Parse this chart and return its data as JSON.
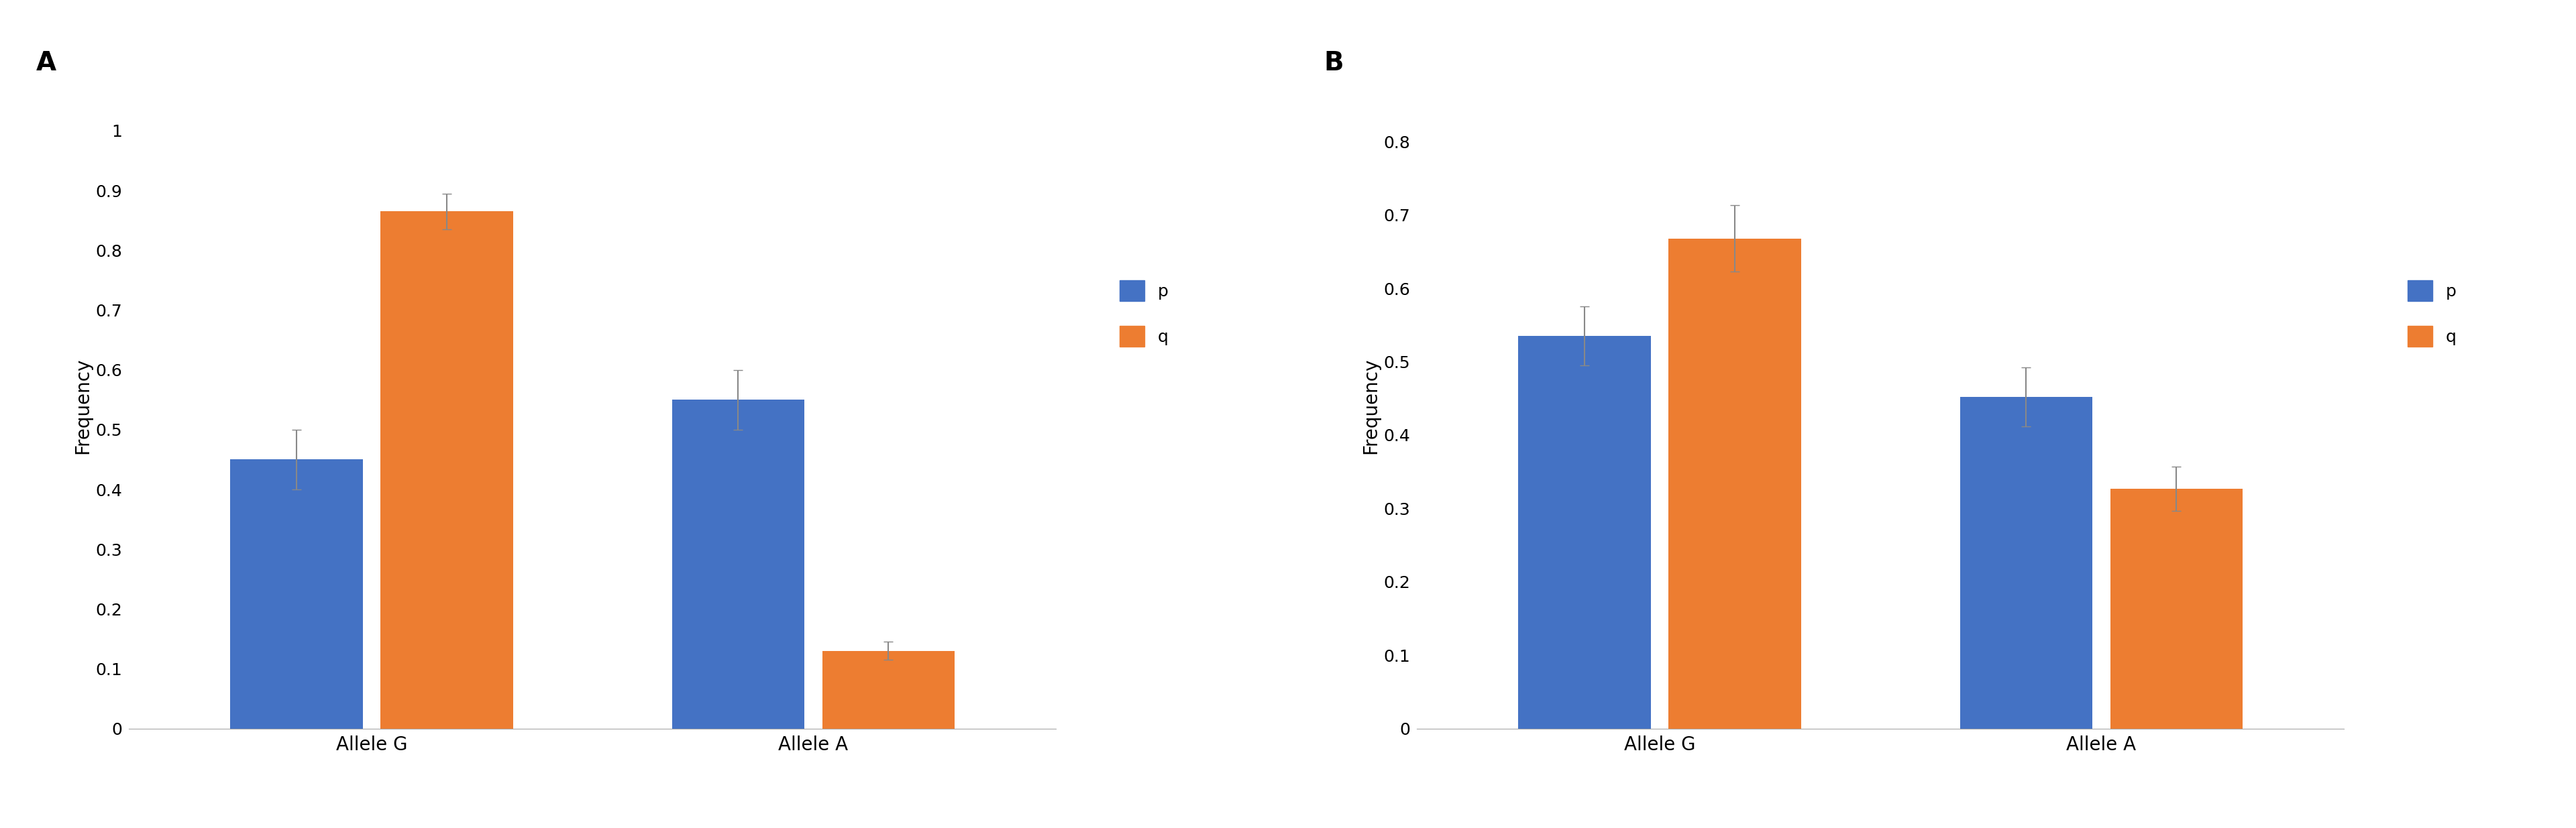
{
  "chart_A": {
    "label": "A",
    "categories": [
      "Allele G",
      "Allele A"
    ],
    "p_values": [
      0.45,
      0.55
    ],
    "q_values": [
      0.865,
      0.13
    ],
    "p_errors": [
      0.05,
      0.05
    ],
    "q_errors": [
      0.03,
      0.015
    ],
    "ylim": [
      0,
      1.08
    ],
    "yticks": [
      0,
      0.1,
      0.2,
      0.3,
      0.4,
      0.5,
      0.6,
      0.7,
      0.8,
      0.9,
      1
    ],
    "ytick_labels": [
      "0",
      "0.1",
      "0.2",
      "0.3",
      "0.4",
      "0.5",
      "0.6",
      "0.7",
      "0.8",
      "0.9",
      "1"
    ],
    "ylabel": "Frequency"
  },
  "chart_B": {
    "label": "B",
    "categories": [
      "Allele G",
      "Allele A"
    ],
    "p_values": [
      0.535,
      0.452
    ],
    "q_values": [
      0.668,
      0.327
    ],
    "p_errors": [
      0.04,
      0.04
    ],
    "q_errors": [
      0.045,
      0.03
    ],
    "ylim": [
      0,
      0.88
    ],
    "yticks": [
      0,
      0.1,
      0.2,
      0.3,
      0.4,
      0.5,
      0.6,
      0.7,
      0.8
    ],
    "ytick_labels": [
      "0",
      "0.1",
      "0.2",
      "0.3",
      "0.4",
      "0.5",
      "0.6",
      "0.7",
      "0.8"
    ],
    "ylabel": "Frequency"
  },
  "bar_color_p": "#4472C4",
  "bar_color_q": "#ED7D31",
  "bar_width": 0.3,
  "legend_labels": [
    "p",
    "q"
  ],
  "error_capsize": 5,
  "error_color": "#888888",
  "background_color": "#ffffff",
  "label_fontsize": 28,
  "axis_label_fontsize": 20,
  "tick_fontsize": 18,
  "legend_fontsize": 18,
  "category_fontsize": 20
}
